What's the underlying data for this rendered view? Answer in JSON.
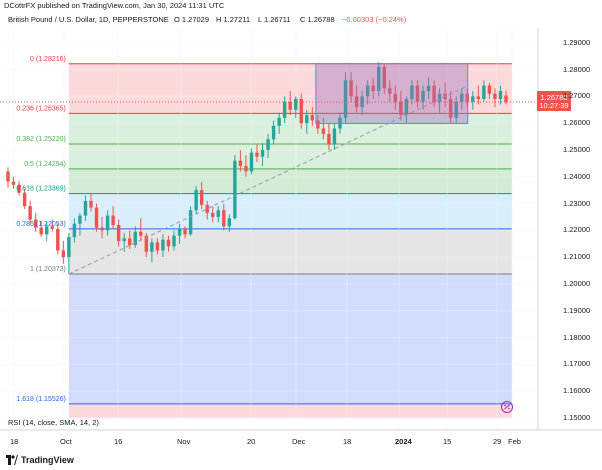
{
  "header": {
    "publisher": "DCottrFX published on TradingView.com, Jan 30, 2024 11:31 UTC"
  },
  "legend": {
    "symbol": "British Pound / U.S. Dollar, 1D, PEPPERSTONE",
    "open": "O 1.27029",
    "high": "H 1.27211",
    "low": "L 1.26711",
    "close": "C 1.26788",
    "change": "−0.00303 (−0.24%)"
  },
  "price_tag": {
    "price": "1.26788",
    "countdown": "10:27:39"
  },
  "indicator_label": "RSI (14, close, SMA, 14, 2)",
  "brand": "TradingView",
  "colors": {
    "up": "#26a69a",
    "down": "#ef5350",
    "trend": "#9598a1",
    "range_fill": "#9c6fb9",
    "range_border": "#5b8bd6"
  },
  "chart_data": {
    "type": "candlestick",
    "ylim": [
      1.1455,
      1.2955
    ],
    "y_ticks": [
      "1.29000",
      "1.28000",
      "1.27000",
      "1.26000",
      "1.25000",
      "1.24000",
      "1.23000",
      "1.22000",
      "1.21000",
      "1.20000",
      "1.19000",
      "1.18000",
      "1.17000",
      "1.16000",
      "1.15000"
    ],
    "x_ticks": [
      "18",
      "Oct",
      "16",
      "Nov",
      "20",
      "Dec",
      "18",
      "2024",
      "15",
      "29",
      "Feb"
    ],
    "fib_levels": [
      {
        "label": "0 (1.28216)",
        "value": 1.28216,
        "color": "#f23645",
        "fill": "#fbd3d5"
      },
      {
        "label": "0.236 (1.26365)",
        "value": 1.26365,
        "color": "#f23645",
        "fill": "#d5ecd8"
      },
      {
        "label": "0.382 (1.25220)",
        "value": 1.2522,
        "color": "#4caf50",
        "fill": "#d5ecd8"
      },
      {
        "label": "0.5 (1.24294)",
        "value": 1.24294,
        "color": "#4caf50",
        "fill": "#cde8cf"
      },
      {
        "label": "0.618 (1.23369)",
        "value": 1.23369,
        "color": "#089981",
        "fill": "#d4ebf8"
      },
      {
        "label": "0.786 (1.22053)",
        "value": 1.22053,
        "color": "#2962ff",
        "fill": "#e0e0e0"
      },
      {
        "label": "1 (1.20373)",
        "value": 1.20373,
        "color": "#787b86",
        "fill": "#c9d6fb"
      },
      {
        "label": "1.618 (1.15526)",
        "value": 1.15526,
        "color": "#2962ff",
        "fill": "#fbd3d5"
      }
    ],
    "trendline": {
      "from_index": 11,
      "to_index": 82,
      "from_value": 1.2037,
      "to_value": 1.2734
    },
    "range_box": {
      "from_index": 56,
      "to_index": 82,
      "top": 1.2822,
      "bottom": 1.2599
    },
    "candles": [
      {
        "o": 1.242,
        "h": 1.2435,
        "l": 1.236,
        "c": 1.2382
      },
      {
        "o": 1.2382,
        "h": 1.24,
        "l": 1.2355,
        "c": 1.237
      },
      {
        "o": 1.237,
        "h": 1.2385,
        "l": 1.233,
        "c": 1.234
      },
      {
        "o": 1.234,
        "h": 1.2355,
        "l": 1.228,
        "c": 1.229
      },
      {
        "o": 1.229,
        "h": 1.231,
        "l": 1.223,
        "c": 1.224
      },
      {
        "o": 1.224,
        "h": 1.2265,
        "l": 1.2195,
        "c": 1.221
      },
      {
        "o": 1.221,
        "h": 1.2235,
        "l": 1.2175,
        "c": 1.2185
      },
      {
        "o": 1.2185,
        "h": 1.223,
        "l": 1.216,
        "c": 1.2215
      },
      {
        "o": 1.2215,
        "h": 1.224,
        "l": 1.2195,
        "c": 1.2205
      },
      {
        "o": 1.2205,
        "h": 1.2225,
        "l": 1.211,
        "c": 1.2125
      },
      {
        "o": 1.2125,
        "h": 1.216,
        "l": 1.2075,
        "c": 1.21
      },
      {
        "o": 1.21,
        "h": 1.219,
        "l": 1.2037,
        "c": 1.2175
      },
      {
        "o": 1.2175,
        "h": 1.2245,
        "l": 1.2155,
        "c": 1.2225
      },
      {
        "o": 1.2225,
        "h": 1.2265,
        "l": 1.218,
        "c": 1.2255
      },
      {
        "o": 1.2255,
        "h": 1.233,
        "l": 1.2235,
        "c": 1.231
      },
      {
        "o": 1.231,
        "h": 1.234,
        "l": 1.227,
        "c": 1.2285
      },
      {
        "o": 1.2285,
        "h": 1.23,
        "l": 1.2195,
        "c": 1.221
      },
      {
        "o": 1.221,
        "h": 1.225,
        "l": 1.217,
        "c": 1.22
      },
      {
        "o": 1.22,
        "h": 1.2275,
        "l": 1.218,
        "c": 1.2255
      },
      {
        "o": 1.2255,
        "h": 1.229,
        "l": 1.2205,
        "c": 1.222
      },
      {
        "o": 1.222,
        "h": 1.224,
        "l": 1.214,
        "c": 1.216
      },
      {
        "o": 1.216,
        "h": 1.219,
        "l": 1.212,
        "c": 1.217
      },
      {
        "o": 1.217,
        "h": 1.22,
        "l": 1.213,
        "c": 1.2145
      },
      {
        "o": 1.2145,
        "h": 1.2215,
        "l": 1.2135,
        "c": 1.2195
      },
      {
        "o": 1.2195,
        "h": 1.2245,
        "l": 1.216,
        "c": 1.218
      },
      {
        "o": 1.218,
        "h": 1.219,
        "l": 1.21,
        "c": 1.212
      },
      {
        "o": 1.212,
        "h": 1.217,
        "l": 1.208,
        "c": 1.2155
      },
      {
        "o": 1.2155,
        "h": 1.217,
        "l": 1.211,
        "c": 1.2125
      },
      {
        "o": 1.2125,
        "h": 1.2185,
        "l": 1.21,
        "c": 1.2165
      },
      {
        "o": 1.2165,
        "h": 1.218,
        "l": 1.212,
        "c": 1.214
      },
      {
        "o": 1.214,
        "h": 1.22,
        "l": 1.2125,
        "c": 1.218
      },
      {
        "o": 1.218,
        "h": 1.2225,
        "l": 1.215,
        "c": 1.2205
      },
      {
        "o": 1.2205,
        "h": 1.2215,
        "l": 1.217,
        "c": 1.2185
      },
      {
        "o": 1.2185,
        "h": 1.229,
        "l": 1.218,
        "c": 1.2275
      },
      {
        "o": 1.2275,
        "h": 1.2365,
        "l": 1.226,
        "c": 1.235
      },
      {
        "o": 1.235,
        "h": 1.238,
        "l": 1.228,
        "c": 1.2295
      },
      {
        "o": 1.2295,
        "h": 1.231,
        "l": 1.224,
        "c": 1.2265
      },
      {
        "o": 1.2265,
        "h": 1.229,
        "l": 1.223,
        "c": 1.225
      },
      {
        "o": 1.225,
        "h": 1.229,
        "l": 1.223,
        "c": 1.2275
      },
      {
        "o": 1.2275,
        "h": 1.23,
        "l": 1.22,
        "c": 1.2215
      },
      {
        "o": 1.2215,
        "h": 1.226,
        "l": 1.2195,
        "c": 1.2245
      },
      {
        "o": 1.2245,
        "h": 1.248,
        "l": 1.224,
        "c": 1.246
      },
      {
        "o": 1.246,
        "h": 1.25,
        "l": 1.242,
        "c": 1.244
      },
      {
        "o": 1.244,
        "h": 1.248,
        "l": 1.24,
        "c": 1.242
      },
      {
        "o": 1.242,
        "h": 1.2505,
        "l": 1.241,
        "c": 1.249
      },
      {
        "o": 1.249,
        "h": 1.252,
        "l": 1.2455,
        "c": 1.2475
      },
      {
        "o": 1.2475,
        "h": 1.2525,
        "l": 1.244,
        "c": 1.25
      },
      {
        "o": 1.25,
        "h": 1.256,
        "l": 1.247,
        "c": 1.254
      },
      {
        "o": 1.254,
        "h": 1.261,
        "l": 1.252,
        "c": 1.259
      },
      {
        "o": 1.259,
        "h": 1.264,
        "l": 1.256,
        "c": 1.262
      },
      {
        "o": 1.262,
        "h": 1.27,
        "l": 1.26,
        "c": 1.268
      },
      {
        "o": 1.268,
        "h": 1.272,
        "l": 1.263,
        "c": 1.265
      },
      {
        "o": 1.265,
        "h": 1.27,
        "l": 1.262,
        "c": 1.269
      },
      {
        "o": 1.269,
        "h": 1.271,
        "l": 1.258,
        "c": 1.26
      },
      {
        "o": 1.26,
        "h": 1.265,
        "l": 1.256,
        "c": 1.263
      },
      {
        "o": 1.263,
        "h": 1.266,
        "l": 1.259,
        "c": 1.261
      },
      {
        "o": 1.261,
        "h": 1.263,
        "l": 1.256,
        "c": 1.258
      },
      {
        "o": 1.258,
        "h": 1.262,
        "l": 1.254,
        "c": 1.256
      },
      {
        "o": 1.256,
        "h": 1.26,
        "l": 1.25,
        "c": 1.252
      },
      {
        "o": 1.252,
        "h": 1.26,
        "l": 1.25,
        "c": 1.258
      },
      {
        "o": 1.258,
        "h": 1.264,
        "l": 1.256,
        "c": 1.262
      },
      {
        "o": 1.262,
        "h": 1.279,
        "l": 1.26,
        "c": 1.276
      },
      {
        "o": 1.276,
        "h": 1.279,
        "l": 1.268,
        "c": 1.27
      },
      {
        "o": 1.27,
        "h": 1.274,
        "l": 1.264,
        "c": 1.266
      },
      {
        "o": 1.266,
        "h": 1.272,
        "l": 1.263,
        "c": 1.27
      },
      {
        "o": 1.27,
        "h": 1.276,
        "l": 1.267,
        "c": 1.274
      },
      {
        "o": 1.274,
        "h": 1.277,
        "l": 1.269,
        "c": 1.272
      },
      {
        "o": 1.272,
        "h": 1.2828,
        "l": 1.27,
        "c": 1.281
      },
      {
        "o": 1.281,
        "h": 1.2822,
        "l": 1.271,
        "c": 1.273
      },
      {
        "o": 1.273,
        "h": 1.276,
        "l": 1.268,
        "c": 1.271
      },
      {
        "o": 1.271,
        "h": 1.274,
        "l": 1.265,
        "c": 1.268
      },
      {
        "o": 1.268,
        "h": 1.272,
        "l": 1.261,
        "c": 1.263
      },
      {
        "o": 1.263,
        "h": 1.27,
        "l": 1.26,
        "c": 1.269
      },
      {
        "o": 1.269,
        "h": 1.276,
        "l": 1.267,
        "c": 1.274
      },
      {
        "o": 1.274,
        "h": 1.276,
        "l": 1.266,
        "c": 1.268
      },
      {
        "o": 1.268,
        "h": 1.274,
        "l": 1.265,
        "c": 1.272
      },
      {
        "o": 1.272,
        "h": 1.277,
        "l": 1.269,
        "c": 1.274
      },
      {
        "o": 1.274,
        "h": 1.276,
        "l": 1.266,
        "c": 1.268
      },
      {
        "o": 1.268,
        "h": 1.273,
        "l": 1.264,
        "c": 1.271
      },
      {
        "o": 1.271,
        "h": 1.275,
        "l": 1.266,
        "c": 1.269
      },
      {
        "o": 1.269,
        "h": 1.272,
        "l": 1.26,
        "c": 1.262
      },
      {
        "o": 1.262,
        "h": 1.27,
        "l": 1.26,
        "c": 1.268
      },
      {
        "o": 1.268,
        "h": 1.273,
        "l": 1.265,
        "c": 1.271
      },
      {
        "o": 1.271,
        "h": 1.273,
        "l": 1.266,
        "c": 1.268
      },
      {
        "o": 1.268,
        "h": 1.272,
        "l": 1.265,
        "c": 1.27
      },
      {
        "o": 1.27,
        "h": 1.274,
        "l": 1.267,
        "c": 1.269
      },
      {
        "o": 1.269,
        "h": 1.276,
        "l": 1.268,
        "c": 1.274
      },
      {
        "o": 1.274,
        "h": 1.275,
        "l": 1.269,
        "c": 1.271
      },
      {
        "o": 1.271,
        "h": 1.273,
        "l": 1.266,
        "c": 1.269
      },
      {
        "o": 1.269,
        "h": 1.274,
        "l": 1.267,
        "c": 1.272
      },
      {
        "o": 1.2703,
        "h": 1.2721,
        "l": 1.2671,
        "c": 1.2679
      }
    ]
  }
}
